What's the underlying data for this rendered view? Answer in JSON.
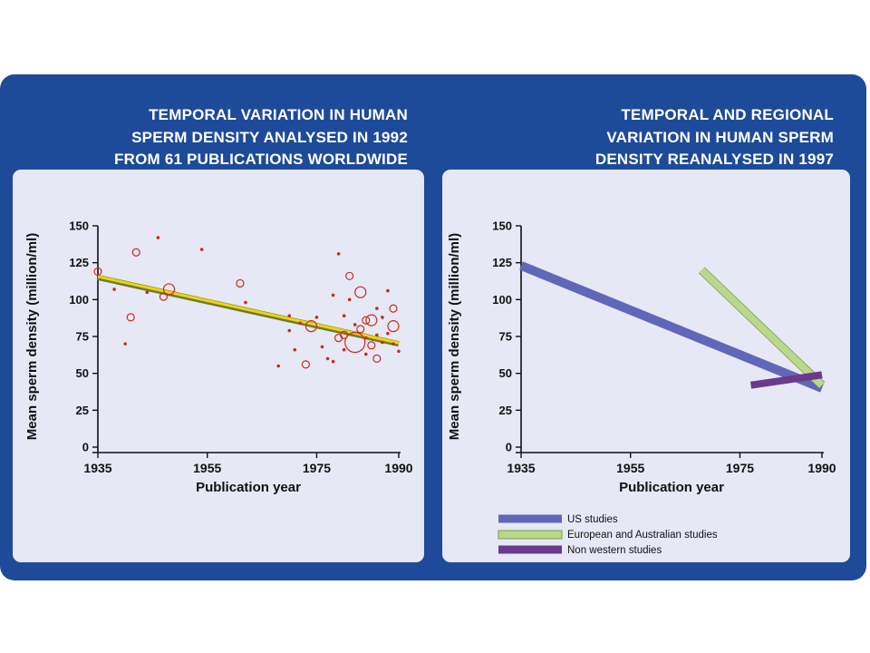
{
  "colors": {
    "frame": "#1e4a9a",
    "panel": "#e6e8f6",
    "point": "#cc2a1a",
    "trend_fill": "#f2d400",
    "trend_edge": "#6b7a3a",
    "us": "#6066b8",
    "european": "#b8d88a",
    "non_western": "#6a3a8c"
  },
  "chart_data": [
    {
      "type": "scatter",
      "title": "TEMPORAL VARIATION IN HUMAN\nSPERM DENSITY ANALYSED IN 1992\nFROM 61 PUBLICATIONS WORLDWIDE",
      "xlabel": "Publication year",
      "ylabel": "Mean sperm density (million/ml)",
      "xlim": [
        1935,
        1990
      ],
      "ylim": [
        0,
        150
      ],
      "xticks": [
        "1935",
        "1955",
        "1975",
        "1990"
      ],
      "yticks": [
        "0",
        "25",
        "50",
        "75",
        "100",
        "125",
        "150"
      ],
      "points": [
        {
          "x": 1935,
          "y": 119,
          "size": 2
        },
        {
          "x": 1938,
          "y": 107,
          "size": 1
        },
        {
          "x": 1940,
          "y": 70,
          "size": 1
        },
        {
          "x": 1941,
          "y": 88,
          "size": 2
        },
        {
          "x": 1942,
          "y": 132,
          "size": 2
        },
        {
          "x": 1944,
          "y": 105,
          "size": 1
        },
        {
          "x": 1946,
          "y": 142,
          "size": 1
        },
        {
          "x": 1947,
          "y": 102,
          "size": 2
        },
        {
          "x": 1948,
          "y": 107,
          "size": 3
        },
        {
          "x": 1954,
          "y": 134,
          "size": 1
        },
        {
          "x": 1961,
          "y": 111,
          "size": 2
        },
        {
          "x": 1962,
          "y": 98,
          "size": 1
        },
        {
          "x": 1968,
          "y": 55,
          "size": 1
        },
        {
          "x": 1970,
          "y": 79,
          "size": 1
        },
        {
          "x": 1970,
          "y": 89,
          "size": 1
        },
        {
          "x": 1971,
          "y": 66,
          "size": 1
        },
        {
          "x": 1972,
          "y": 84,
          "size": 1
        },
        {
          "x": 1973,
          "y": 56,
          "size": 2
        },
        {
          "x": 1974,
          "y": 82,
          "size": 3
        },
        {
          "x": 1975,
          "y": 88,
          "size": 1
        },
        {
          "x": 1976,
          "y": 68,
          "size": 1
        },
        {
          "x": 1977,
          "y": 60,
          "size": 1
        },
        {
          "x": 1978,
          "y": 103,
          "size": 1
        },
        {
          "x": 1978,
          "y": 58,
          "size": 1
        },
        {
          "x": 1979,
          "y": 131,
          "size": 1
        },
        {
          "x": 1979,
          "y": 74,
          "size": 2
        },
        {
          "x": 1980,
          "y": 76,
          "size": 2
        },
        {
          "x": 1980,
          "y": 89,
          "size": 1
        },
        {
          "x": 1981,
          "y": 116,
          "size": 2
        },
        {
          "x": 1981,
          "y": 100,
          "size": 1
        },
        {
          "x": 1982,
          "y": 71,
          "size": 5
        },
        {
          "x": 1982,
          "y": 83,
          "size": 1
        },
        {
          "x": 1983,
          "y": 105,
          "size": 3
        },
        {
          "x": 1983,
          "y": 80,
          "size": 2
        },
        {
          "x": 1984,
          "y": 86,
          "size": 2
        },
        {
          "x": 1984,
          "y": 74,
          "size": 1
        },
        {
          "x": 1985,
          "y": 86,
          "size": 3
        },
        {
          "x": 1985,
          "y": 69,
          "size": 2
        },
        {
          "x": 1986,
          "y": 60,
          "size": 2
        },
        {
          "x": 1986,
          "y": 76,
          "size": 1
        },
        {
          "x": 1987,
          "y": 71,
          "size": 1
        },
        {
          "x": 1987,
          "y": 88,
          "size": 1
        },
        {
          "x": 1988,
          "y": 106,
          "size": 1
        },
        {
          "x": 1988,
          "y": 77,
          "size": 1
        },
        {
          "x": 1989,
          "y": 94,
          "size": 2
        },
        {
          "x": 1989,
          "y": 82,
          "size": 3
        },
        {
          "x": 1989,
          "y": 70,
          "size": 1
        },
        {
          "x": 1990,
          "y": 65,
          "size": 1
        },
        {
          "x": 1984,
          "y": 63,
          "size": 1
        },
        {
          "x": 1986,
          "y": 94,
          "size": 1
        },
        {
          "x": 1980,
          "y": 66,
          "size": 1
        }
      ],
      "trend": {
        "x": [
          1935,
          1990
        ],
        "y": [
          115,
          70
        ]
      }
    },
    {
      "type": "line",
      "title": "TEMPORAL AND REGIONAL\nVARIATION IN HUMAN SPERM\nDENSITY REANALYSED IN 1997",
      "xlabel": "Publication year",
      "ylabel": "Mean sperm density (million/ml)",
      "xlim": [
        1935,
        1990
      ],
      "ylim": [
        0,
        150
      ],
      "xticks": [
        "1935",
        "1955",
        "1975",
        "1990"
      ],
      "yticks": [
        "0",
        "25",
        "50",
        "75",
        "100",
        "125",
        "150"
      ],
      "legend_position": "bottom-left",
      "series": [
        {
          "name": "US studies",
          "color_key": "us",
          "x": [
            1935,
            1990
          ],
          "y": [
            123,
            40
          ]
        },
        {
          "name": "European and Australian studies",
          "color_key": "european",
          "x": [
            1968,
            1990
          ],
          "y": [
            120,
            42
          ]
        },
        {
          "name": "Non western studies",
          "color_key": "non_western",
          "x": [
            1977,
            1990
          ],
          "y": [
            42,
            49
          ]
        }
      ]
    }
  ]
}
